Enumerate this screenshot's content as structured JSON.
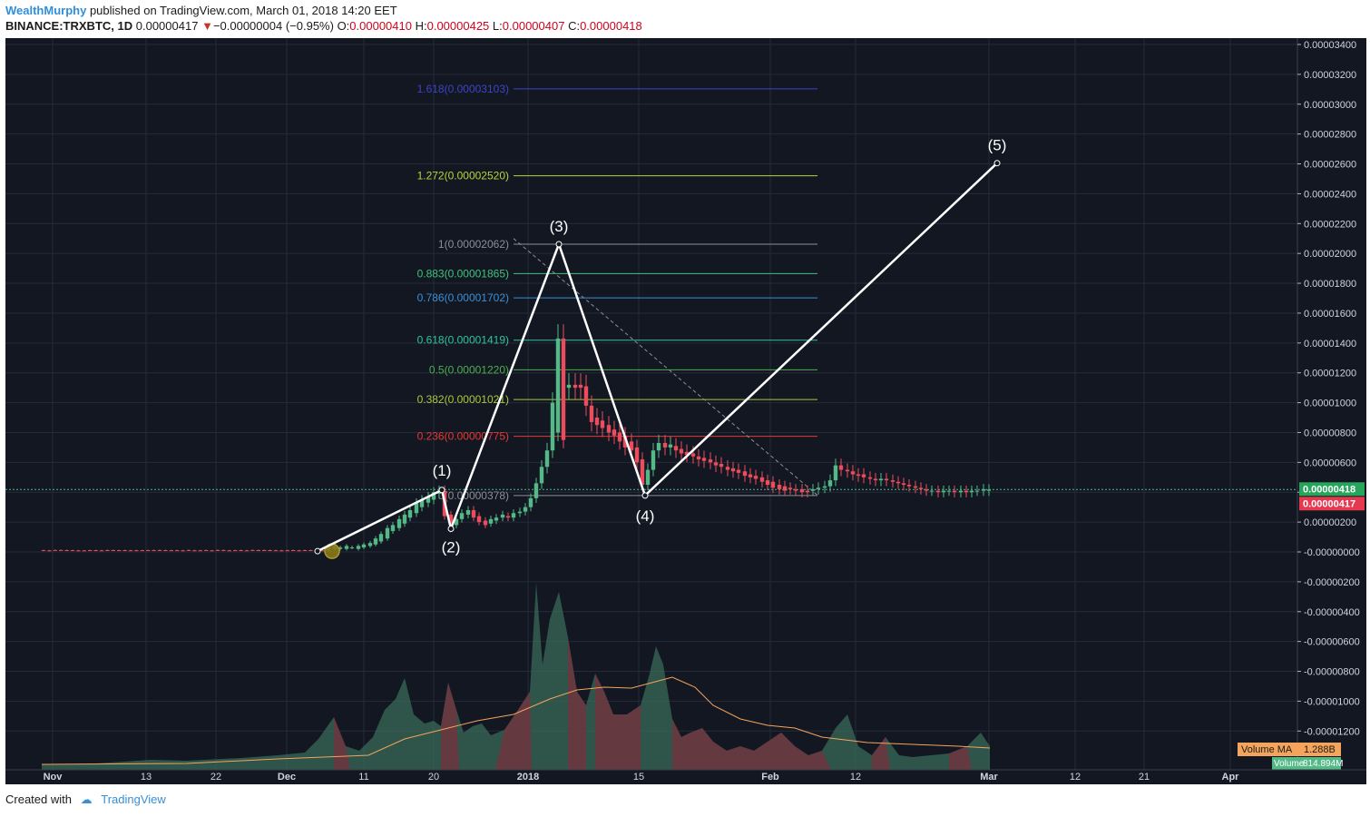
{
  "header": {
    "user": "WealthMurphy",
    "published": "published on TradingView.com, March 01, 2018 14:20 EET",
    "ticker": "BINANCE:TRXBTC, 1D",
    "price": "0.00000417",
    "change_arrow": "▼",
    "change": "−0.00000004 (−0.95%)",
    "o_label": "O:",
    "o_value": "0.00000410",
    "h_label": "H:",
    "h_value": "0.00000425",
    "l_label": "L:",
    "l_value": "0.00000407",
    "c_label": "C:",
    "c_value": "0.00000418"
  },
  "footer": {
    "created_with": "Created with",
    "brand": "TradingView"
  },
  "colors": {
    "background": "#131722",
    "grid": "#262b3a",
    "up": "#53b987",
    "down": "#eb4d5c",
    "volume_ma": "#f4a45b",
    "wave": "#ffffff"
  },
  "chart_data": {
    "type": "candlestick",
    "x_ticks": [
      "Nov",
      "13",
      "22",
      "Dec",
      "11",
      "20",
      "2018",
      "15",
      "Feb",
      "12",
      "Mar",
      "12",
      "21",
      "Apr"
    ],
    "y_ticks": [
      "0.00003400",
      "0.00003200",
      "0.00003000",
      "0.00002800",
      "0.00002600",
      "0.00002400",
      "0.00002200",
      "0.00002000",
      "0.00001800",
      "0.00001600",
      "0.00001400",
      "0.00001200",
      "0.00001000",
      "0.00000800",
      "0.00000600",
      "0.00000400",
      "0.00000200",
      "-0.00000000",
      "-0.00000200",
      "-0.00000400",
      "-0.00000600",
      "-0.00000800",
      "-0.00001000",
      "-0.00001200"
    ],
    "y_tick_values": [
      3.4e-05,
      3.2e-05,
      3e-05,
      2.8e-05,
      2.6e-05,
      2.4e-05,
      2.2e-05,
      2e-05,
      1.8e-05,
      1.6e-05,
      1.4e-05,
      1.2e-05,
      1e-05,
      8e-06,
      6e-06,
      4e-06,
      2e-06,
      0,
      -2e-06,
      -4e-06,
      -6e-06,
      -8e-06,
      -1e-05,
      -1.2e-05
    ],
    "last_price_labels": [
      "0.00000418",
      "0.00000417"
    ],
    "fib_levels": [
      {
        "label": "1.618(0.00003103)",
        "ratio": 1.618,
        "price": 3.103e-05,
        "color": "#3d44c4"
      },
      {
        "label": "1.272(0.00002520)",
        "ratio": 1.272,
        "price": 2.52e-05,
        "color": "#b6d43a"
      },
      {
        "label": "1(0.00002062)",
        "ratio": 1,
        "price": 2.062e-05,
        "color": "#8a8f98"
      },
      {
        "label": "0.883(0.00001865)",
        "ratio": 0.883,
        "price": 1.865e-05,
        "color": "#3ec37c"
      },
      {
        "label": "0.786(0.00001702)",
        "ratio": 0.786,
        "price": 1.702e-05,
        "color": "#3a8fd6"
      },
      {
        "label": "0.618(0.00001419)",
        "ratio": 0.618,
        "price": 1.419e-05,
        "color": "#2ec4a0"
      },
      {
        "label": "0.5(0.00001220)",
        "ratio": 0.5,
        "price": 1.22e-05,
        "color": "#4caf50"
      },
      {
        "label": "0.382(0.00001021)",
        "ratio": 0.382,
        "price": 1.021e-05,
        "color": "#a6c93b"
      },
      {
        "label": "0.236(0.00000775)",
        "ratio": 0.236,
        "price": 7.75e-06,
        "color": "#e53935"
      },
      {
        "label": "0(0.00000378)",
        "ratio": 0,
        "price": 3.78e-06,
        "color": "#8a8f98"
      }
    ],
    "elliott_waves": [
      {
        "label": "",
        "price": 5e-08
      },
      {
        "label": "(1)",
        "price": 4.15e-06
      },
      {
        "label": "(2)",
        "price": 1.55e-06
      },
      {
        "label": "(3)",
        "price": 2.062e-05
      },
      {
        "label": "(4)",
        "price": 3.78e-06
      },
      {
        "label": "(5)",
        "price": 2.605e-05
      }
    ],
    "volume_ma_label": "Volume MA",
    "volume_ma_value": "1.288B",
    "volume_last_label": "Volume",
    "volume_last_value": "814.894M"
  }
}
